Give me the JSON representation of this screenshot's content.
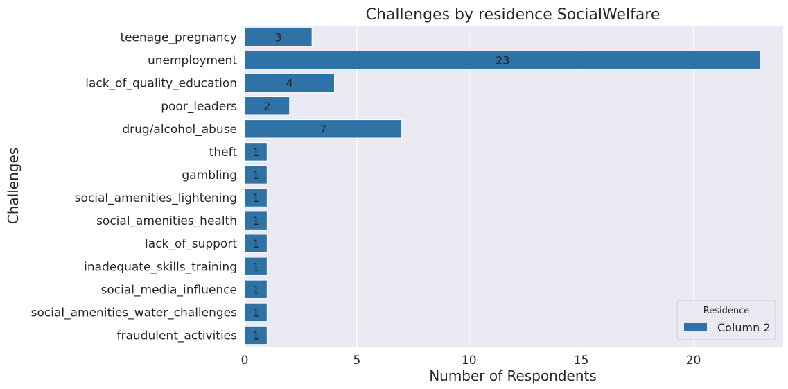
{
  "chart_data": {
    "type": "bar",
    "orientation": "horizontal",
    "title": "Challenges by residence SocialWelfare",
    "xlabel": "Number of Respondents",
    "ylabel": "Challenges",
    "categories": [
      "teenage_pregnancy",
      "unemployment",
      "lack_of_quality_education",
      "poor_leaders",
      "drug/alcohol_abuse",
      "theft",
      "gambling",
      "social_amenities_lightening",
      "social_amenities_health",
      "lack_of_support",
      "inadequate_skills_training",
      "social_media_influence",
      "social_amenities_water_challenges",
      "fraudulent_activities"
    ],
    "series": [
      {
        "name": "Column 2",
        "color": "#2e72a6",
        "values": [
          3,
          23,
          4,
          2,
          7,
          1,
          1,
          1,
          1,
          1,
          1,
          1,
          1,
          1
        ]
      }
    ],
    "data_labels": [
      "3",
      "23",
      "4",
      "2",
      "7",
      "1",
      "1",
      "1",
      "1",
      "1",
      "1",
      "1",
      "1",
      "1"
    ],
    "xticks": [
      "0",
      "5",
      "10",
      "15",
      "20"
    ],
    "xtick_values": [
      0,
      5,
      10,
      15,
      20
    ],
    "xlim": [
      0,
      24
    ],
    "grid": true,
    "grid_axis": "x",
    "background_color": "#eaeaf2",
    "legend": {
      "title": "Residence",
      "placement": "lower-right"
    }
  }
}
